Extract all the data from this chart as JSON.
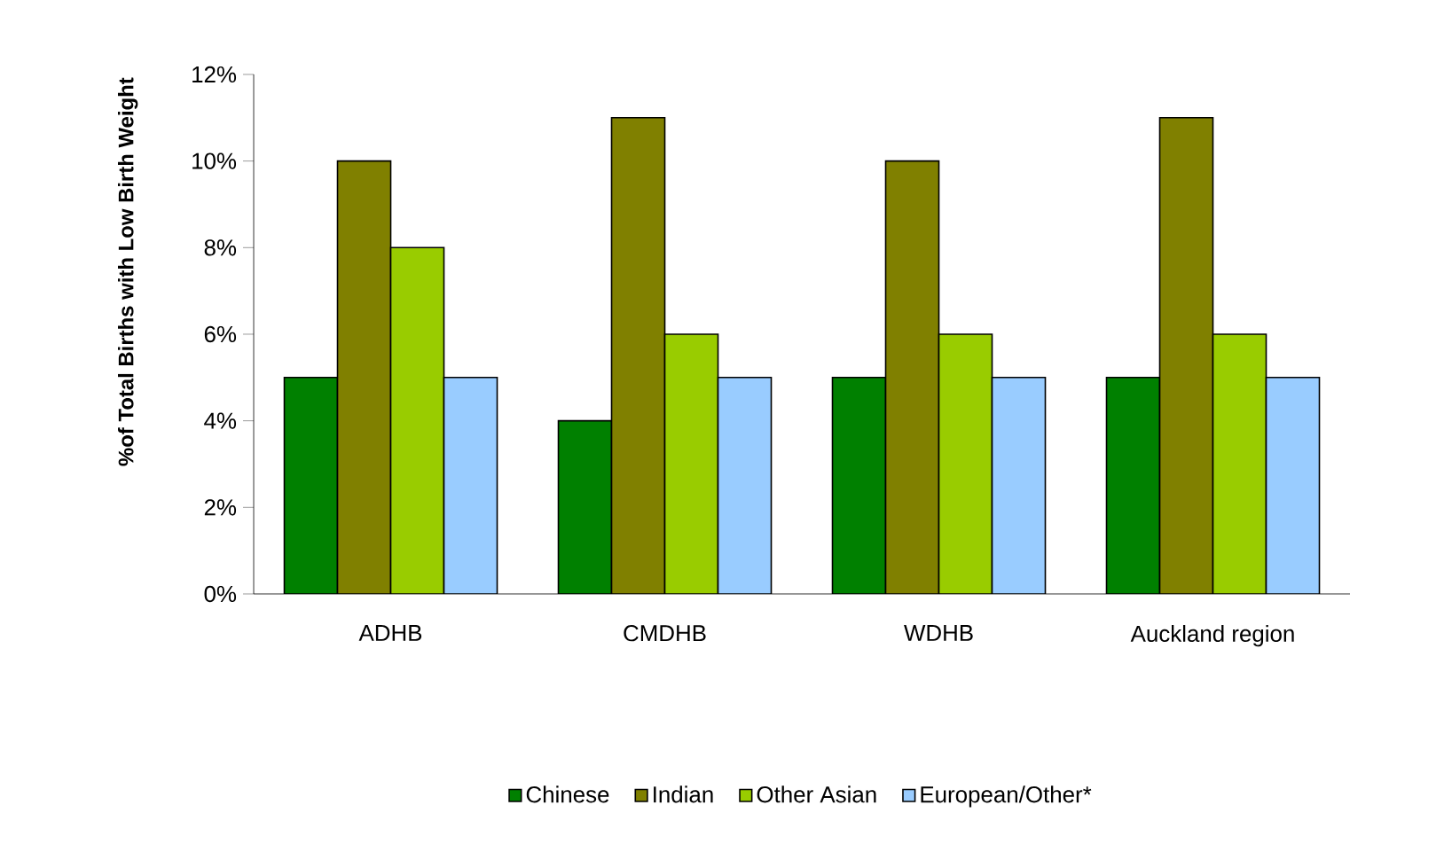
{
  "chart_data": {
    "type": "bar",
    "ylabel": "%of Total Births with Low Birth Weight",
    "categories": [
      "ADHB",
      "CMDHB",
      "WDHB",
      "Auckland region"
    ],
    "series": [
      {
        "name": "Chinese",
        "color": "#008000",
        "values": [
          5,
          4,
          5,
          5
        ]
      },
      {
        "name": "Indian",
        "color": "#808000",
        "values": [
          10,
          11,
          10,
          11
        ]
      },
      {
        "name": "Other Asian",
        "color": "#99cc00",
        "values": [
          8,
          6,
          6,
          6
        ]
      },
      {
        "name": "European/Other*",
        "color": "#99ccff",
        "values": [
          5,
          5,
          5,
          5
        ]
      }
    ],
    "ylim": [
      0,
      12
    ],
    "yticks": [
      {
        "value": 0,
        "label": "0%"
      },
      {
        "value": 2,
        "label": "2%"
      },
      {
        "value": 4,
        "label": "4%"
      },
      {
        "value": 6,
        "label": "6%"
      },
      {
        "value": 8,
        "label": "8%"
      },
      {
        "value": 10,
        "label": "10%"
      },
      {
        "value": 12,
        "label": "12%"
      }
    ],
    "grid": false,
    "legend": "bottom"
  }
}
